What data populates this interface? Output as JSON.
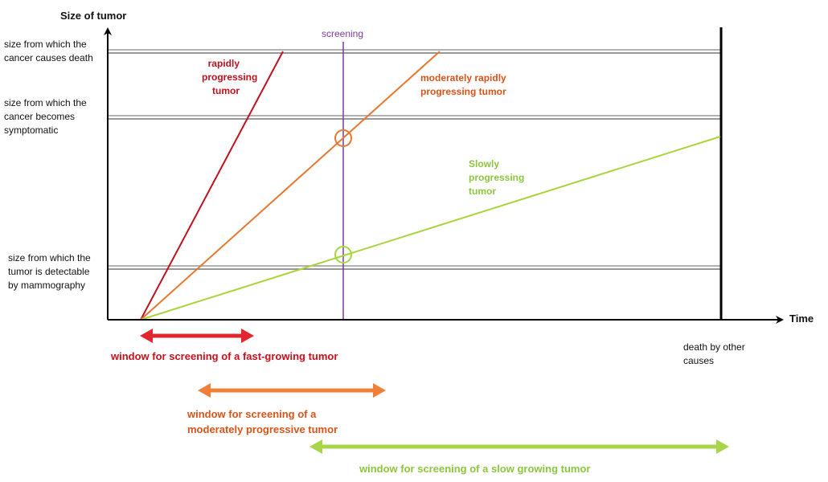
{
  "axes": {
    "y_label": "Size of  tumor",
    "x_label": "Time"
  },
  "thresholds": [
    {
      "label": "size from which the\ncancer causes death"
    },
    {
      "label": " size from which the\ncancer becomes\nsymptomatic"
    },
    {
      "label": "size from which the\ntumor is detectable\nby mammography"
    }
  ],
  "screening_label": "screening",
  "death_label": "death by other\ncauses",
  "curves": [
    {
      "label": "rapidly\nprogressing\ntumor",
      "color": "#c0111f"
    },
    {
      "label": "moderately rapidly\nprogressing tumor",
      "color": "#e8772e"
    },
    {
      "label": "Slowly\nprogressing\ntumor",
      "color": "#a6d63c"
    }
  ],
  "windows": [
    {
      "label": "window for screening of a fast-growing tumor",
      "color": "#c8101d",
      "arrow_color": "#e3262d"
    },
    {
      "label": "window for screening of a\nmoderately progressive tumor",
      "color": "#d7541a",
      "arrow_color": "#f07f3a"
    },
    {
      "label": "window for screening of a  slow growing tumor",
      "color": "#8cc63f",
      "arrow_color": "#a8d64a"
    }
  ],
  "colors": {
    "screening": "#7a3d9a",
    "axis": "#000000",
    "threshold": "#888888"
  }
}
